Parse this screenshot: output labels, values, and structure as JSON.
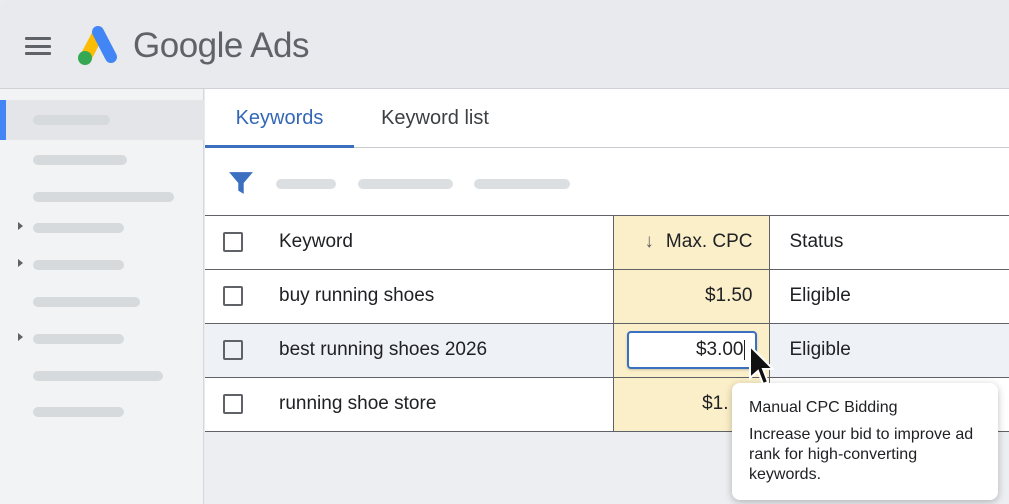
{
  "header": {
    "brand": "Google Ads",
    "menu_icon": "hamburger-menu-icon",
    "logo": "google-ads-logo",
    "logo_colors": [
      "#4285f4",
      "#fbbc04",
      "#34a853"
    ]
  },
  "tabs": [
    {
      "label": "Keywords",
      "active": true
    },
    {
      "label": "Keyword list",
      "active": false
    }
  ],
  "table": {
    "headers": {
      "keyword": "Keyword",
      "sort_icon": "↓",
      "max_cpc": "Max. CPC",
      "status": "Status"
    },
    "rows": [
      {
        "keyword": "buy running shoes",
        "max_cpc": "$1.50",
        "status": "Eligible"
      },
      {
        "keyword": "best running shoes 2026",
        "max_cpc": "$3.00",
        "status": "Eligible",
        "editing": true
      },
      {
        "keyword": "running shoe store",
        "max_cpc": "$1.",
        "status": ""
      }
    ]
  },
  "tooltip": {
    "title": "Manual CPC Bidding",
    "body": "Increase your bid to improve ad rank for high-converting keywords."
  },
  "colors": {
    "accent": "#3b6fc0",
    "highlight_column": "#fbefc9"
  }
}
